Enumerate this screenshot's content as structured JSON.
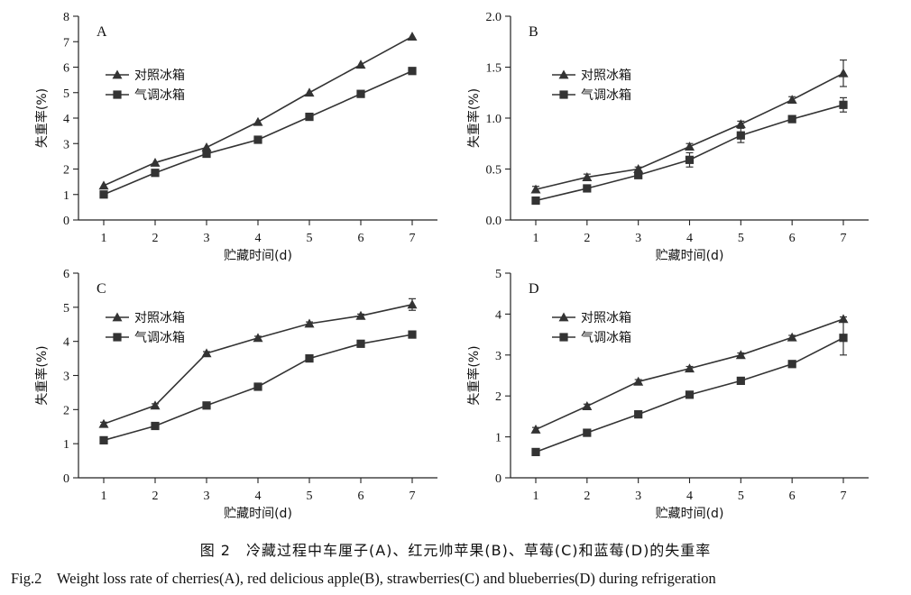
{
  "colors": {
    "line": "#333333",
    "axis": "#222222"
  },
  "caption": {
    "cn": "图 2　冷藏过程中车厘子(A)、红元帅苹果(B)、草莓(C)和蓝莓(D)的失重率",
    "en": "Fig.2　Weight loss rate of cherries(A), red delicious apple(B), strawberries(C) and blueberries(D) during refrigeration"
  },
  "chart_data": [
    {
      "panel": "A",
      "type": "line",
      "xlabel": "贮藏时间(d)",
      "ylabel": "失重率(%)",
      "x": [
        1,
        2,
        3,
        4,
        5,
        6,
        7
      ],
      "ylim": [
        0,
        8
      ],
      "yticks": [
        "0",
        "1",
        "2",
        "3",
        "4",
        "5",
        "6",
        "7",
        "8"
      ],
      "series": [
        {
          "name": "对照冰箱",
          "marker": "triangle",
          "values": [
            1.35,
            2.25,
            2.85,
            3.85,
            5.0,
            6.1,
            7.2
          ],
          "errors": [
            0,
            0,
            0,
            0,
            0,
            0,
            0
          ]
        },
        {
          "name": "气调冰箱",
          "marker": "square",
          "values": [
            1.0,
            1.85,
            2.6,
            3.15,
            4.05,
            4.95,
            5.85
          ],
          "errors": [
            0,
            0,
            0,
            0,
            0,
            0,
            0
          ]
        }
      ]
    },
    {
      "panel": "B",
      "type": "line",
      "xlabel": "贮藏时间(d)",
      "ylabel": "失重率(%)",
      "x": [
        1,
        2,
        3,
        4,
        5,
        6,
        7
      ],
      "ylim": [
        0,
        2
      ],
      "yticks": [
        "0.0",
        "0.5",
        "1.0",
        "1.5",
        "2.0"
      ],
      "series": [
        {
          "name": "对照冰箱",
          "marker": "triangle",
          "values": [
            0.3,
            0.42,
            0.5,
            0.72,
            0.94,
            1.18,
            1.44
          ],
          "errors": [
            0.03,
            0.03,
            0.02,
            0.03,
            0.03,
            0.03,
            0.13
          ]
        },
        {
          "name": "气调冰箱",
          "marker": "square",
          "values": [
            0.19,
            0.31,
            0.44,
            0.59,
            0.83,
            0.99,
            1.13
          ],
          "errors": [
            0.02,
            0.01,
            0.03,
            0.07,
            0.07,
            0.02,
            0.07
          ]
        }
      ]
    },
    {
      "panel": "C",
      "type": "line",
      "xlabel": "贮藏时间(d)",
      "ylabel": "失重率(%)",
      "x": [
        1,
        2,
        3,
        4,
        5,
        6,
        7
      ],
      "ylim": [
        0,
        6
      ],
      "yticks": [
        "0",
        "1",
        "2",
        "3",
        "4",
        "5",
        "6"
      ],
      "series": [
        {
          "name": "对照冰箱",
          "marker": "triangle",
          "values": [
            1.58,
            2.12,
            3.65,
            4.1,
            4.52,
            4.75,
            5.08
          ],
          "errors": [
            0.05,
            0.05,
            0.05,
            0.05,
            0.05,
            0.05,
            0.17
          ]
        },
        {
          "name": "气调冰箱",
          "marker": "square",
          "values": [
            1.1,
            1.52,
            2.12,
            2.67,
            3.5,
            3.93,
            4.2
          ],
          "errors": [
            0.08,
            0.05,
            0.05,
            0.05,
            0.05,
            0.05,
            0.05
          ]
        }
      ]
    },
    {
      "panel": "D",
      "type": "line",
      "xlabel": "贮藏时间(d)",
      "ylabel": "失重率(%)",
      "x": [
        1,
        2,
        3,
        4,
        5,
        6,
        7
      ],
      "ylim": [
        0,
        5
      ],
      "yticks": [
        "0",
        "1",
        "2",
        "3",
        "4",
        "5"
      ],
      "series": [
        {
          "name": "对照冰箱",
          "marker": "triangle",
          "values": [
            1.18,
            1.75,
            2.35,
            2.67,
            3.0,
            3.43,
            3.88
          ],
          "errors": [
            0.05,
            0.05,
            0.05,
            0.05,
            0.05,
            0.05,
            0.05
          ]
        },
        {
          "name": "气调冰箱",
          "marker": "square",
          "values": [
            0.63,
            1.1,
            1.55,
            2.03,
            2.37,
            2.78,
            3.42
          ],
          "errors": [
            0.05,
            0.05,
            0.05,
            0.05,
            0.05,
            0.05,
            0.42
          ]
        }
      ]
    }
  ]
}
